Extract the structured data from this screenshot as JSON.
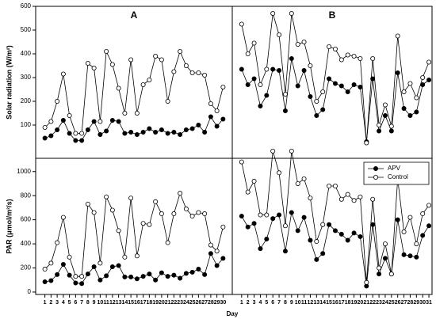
{
  "x_label": "Day",
  "chart_data": [
    {
      "type": "line",
      "title": "A",
      "y_label": "Solar radiation (W/m²)",
      "x": [
        1,
        2,
        3,
        4,
        5,
        6,
        7,
        8,
        9,
        10,
        11,
        12,
        13,
        14,
        15,
        16,
        17,
        18,
        19,
        20,
        21,
        22,
        23,
        24,
        25,
        26,
        27,
        28,
        29,
        30
      ],
      "xlim": [
        -0.5,
        31.5
      ],
      "ylim": [
        -40,
        600
      ],
      "yticks": [
        100,
        200,
        300,
        400,
        500,
        600
      ],
      "series": [
        {
          "name": "APV",
          "color": "#000000",
          "values": [
            45,
            55,
            80,
            120,
            65,
            35,
            35,
            80,
            115,
            60,
            75,
            120,
            115,
            65,
            70,
            60,
            70,
            85,
            70,
            80,
            65,
            70,
            60,
            80,
            85,
            100,
            70,
            135,
            95,
            125
          ]
        },
        {
          "name": "Control",
          "color": "#ffffff",
          "values": [
            90,
            115,
            200,
            315,
            140,
            65,
            65,
            360,
            340,
            115,
            410,
            355,
            255,
            150,
            375,
            150,
            270,
            290,
            390,
            375,
            200,
            325,
            410,
            350,
            320,
            320,
            310,
            190,
            160,
            260
          ]
        }
      ]
    },
    {
      "type": "line",
      "title": "B",
      "x": [
        1,
        2,
        3,
        4,
        5,
        6,
        7,
        8,
        9,
        10,
        11,
        12,
        13,
        14,
        15,
        16,
        17,
        18,
        19,
        20,
        21,
        22,
        23,
        24,
        25,
        26,
        27,
        28,
        29,
        30,
        31
      ],
      "xlim": [
        -0.5,
        31.5
      ],
      "ylim": [
        -40,
        600
      ],
      "series": [
        {
          "name": "APV",
          "color": "#000000",
          "values": [
            335,
            270,
            295,
            180,
            225,
            335,
            330,
            160,
            380,
            265,
            330,
            220,
            140,
            165,
            295,
            275,
            265,
            240,
            270,
            260,
            30,
            295,
            75,
            140,
            75,
            320,
            170,
            140,
            155,
            270,
            290
          ]
        },
        {
          "name": "Control",
          "color": "#ffffff",
          "values": [
            525,
            400,
            445,
            270,
            335,
            570,
            480,
            230,
            570,
            440,
            450,
            350,
            200,
            240,
            430,
            420,
            375,
            395,
            390,
            380,
            25,
            380,
            100,
            185,
            95,
            475,
            240,
            275,
            215,
            300,
            365
          ]
        }
      ]
    },
    {
      "type": "line",
      "y_label": "PAR (μmol/m²/s)",
      "x": [
        1,
        2,
        3,
        4,
        5,
        6,
        7,
        8,
        9,
        10,
        11,
        12,
        13,
        14,
        15,
        16,
        17,
        18,
        19,
        20,
        21,
        22,
        23,
        24,
        25,
        26,
        27,
        28,
        29,
        30
      ],
      "xlim": [
        -0.5,
        31.5
      ],
      "xticks": [
        1,
        2,
        3,
        4,
        5,
        6,
        7,
        8,
        9,
        10,
        11,
        12,
        13,
        14,
        15,
        16,
        17,
        18,
        19,
        20,
        21,
        22,
        23,
        24,
        25,
        26,
        27,
        28,
        29,
        30
      ],
      "ylim": [
        -20,
        1110
      ],
      "yticks": [
        0,
        200,
        400,
        600,
        800,
        1000
      ],
      "series": [
        {
          "name": "APV",
          "color": "#000000",
          "values": [
            85,
            95,
            145,
            230,
            140,
            75,
            70,
            150,
            210,
            100,
            135,
            210,
            220,
            125,
            125,
            110,
            130,
            150,
            100,
            160,
            130,
            140,
            115,
            155,
            165,
            190,
            145,
            320,
            220,
            280
          ]
        },
        {
          "name": "Control",
          "color": "#ffffff",
          "values": [
            190,
            240,
            410,
            620,
            290,
            130,
            130,
            730,
            660,
            240,
            790,
            680,
            510,
            290,
            780,
            300,
            570,
            560,
            750,
            650,
            410,
            650,
            820,
            690,
            630,
            660,
            650,
            390,
            340,
            540
          ]
        }
      ]
    },
    {
      "type": "line",
      "legend": "upper right",
      "x": [
        1,
        2,
        3,
        4,
        5,
        6,
        7,
        8,
        9,
        10,
        11,
        12,
        13,
        14,
        15,
        16,
        17,
        18,
        19,
        20,
        21,
        22,
        23,
        24,
        25,
        26,
        27,
        28,
        29,
        30,
        31
      ],
      "xlim": [
        -0.5,
        31.5
      ],
      "xticks": [
        1,
        2,
        3,
        4,
        5,
        6,
        7,
        8,
        9,
        10,
        11,
        12,
        13,
        14,
        15,
        16,
        17,
        18,
        19,
        20,
        21,
        22,
        23,
        24,
        25,
        26,
        27,
        28,
        29,
        30,
        31
      ],
      "ylim": [
        -20,
        1110
      ],
      "series": [
        {
          "name": "APV",
          "color": "#000000",
          "values": [
            630,
            540,
            570,
            360,
            440,
            610,
            640,
            340,
            660,
            510,
            620,
            430,
            270,
            320,
            560,
            510,
            480,
            430,
            490,
            460,
            50,
            560,
            150,
            280,
            150,
            600,
            310,
            300,
            290,
            470,
            550
          ]
        },
        {
          "name": "Control",
          "color": "#ffffff",
          "values": [
            1080,
            830,
            920,
            640,
            640,
            1170,
            990,
            550,
            1170,
            900,
            940,
            780,
            420,
            560,
            880,
            880,
            770,
            810,
            760,
            790,
            80,
            770,
            200,
            400,
            150,
            940,
            500,
            620,
            400,
            650,
            720
          ]
        }
      ]
    }
  ]
}
